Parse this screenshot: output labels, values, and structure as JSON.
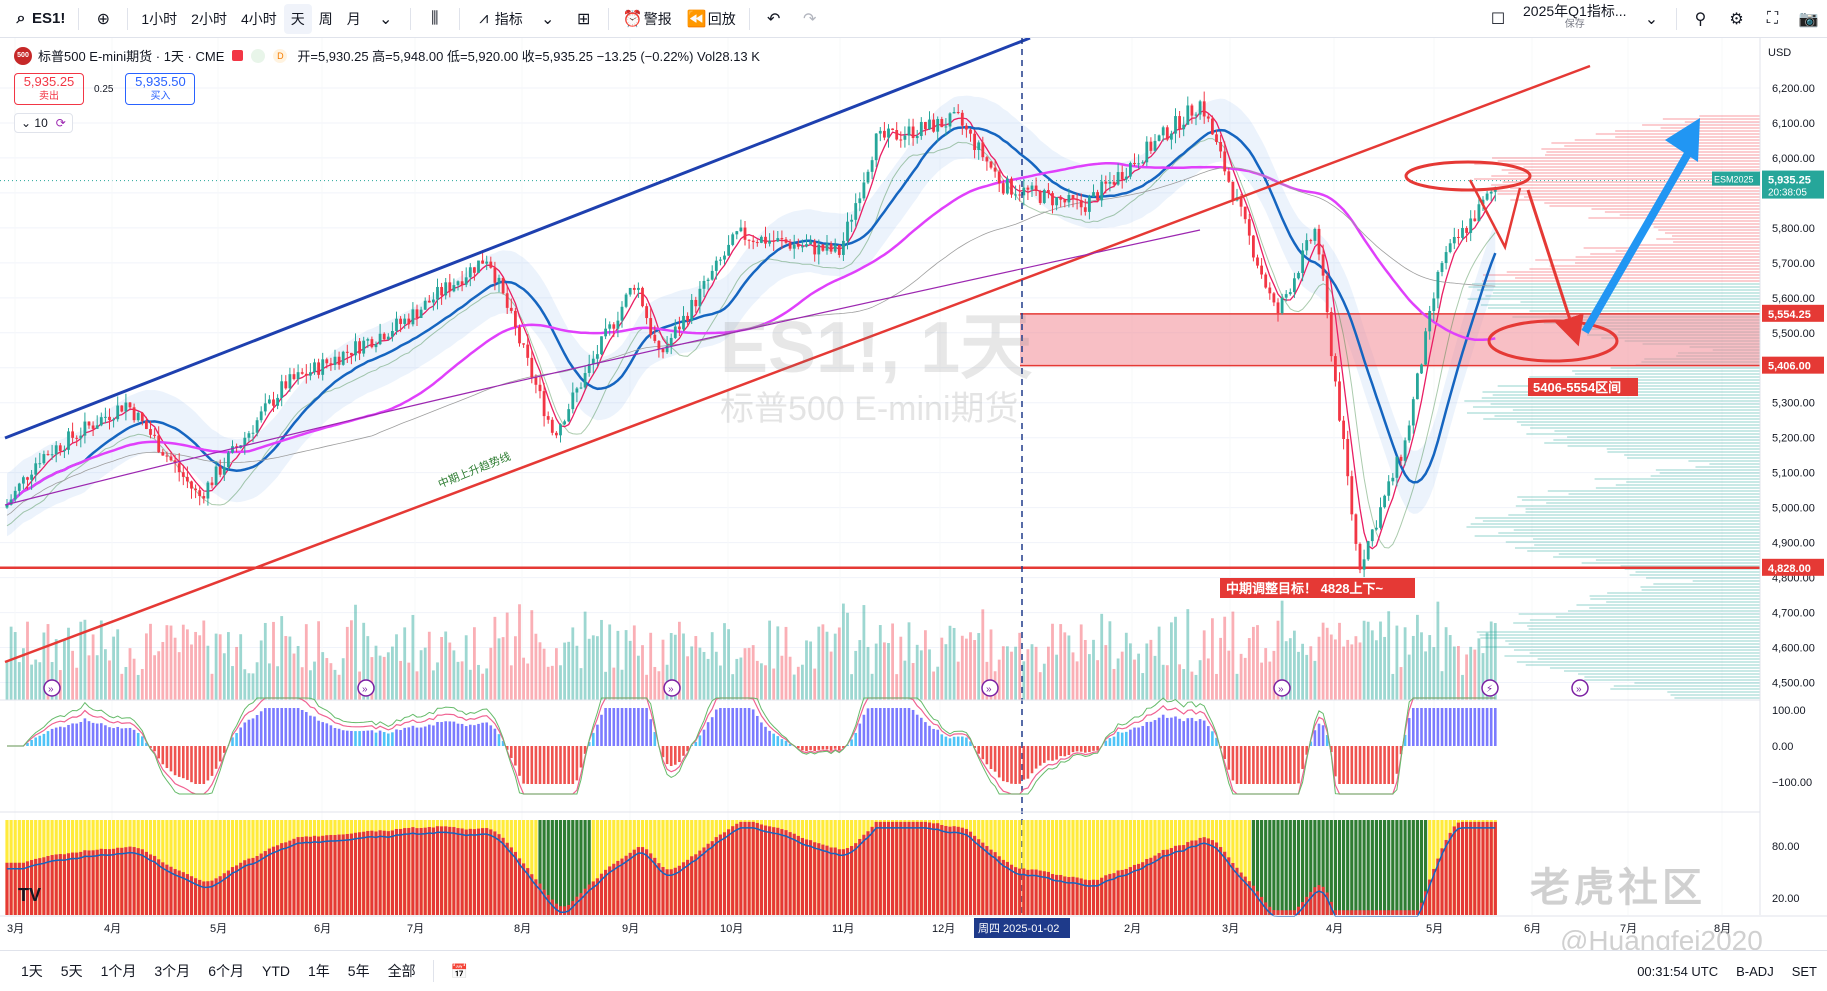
{
  "toolbar": {
    "symbol": "ES1!",
    "intervals": [
      "1小时",
      "2小时",
      "4小时",
      "天",
      "周",
      "月"
    ],
    "active_interval": "天",
    "indicators_label": "指标",
    "alert_label": "警报",
    "replay_label": "回放",
    "layout_title": "2025年Q1指标...",
    "layout_sub": "保存"
  },
  "legend": {
    "name": "标普500 E-mini期货 · 1天 · CME",
    "logo_text": "500",
    "d_label": "D",
    "ohlc": "开=5,930.25 高=5,948.00 低=5,920.00 收=5,935.25 −13.25 (−0.22%) Vol28.13 K",
    "sell_price": "5,935.25",
    "sell_label": "卖出",
    "spread": "0.25",
    "buy_price": "5,935.50",
    "buy_label": "买入",
    "indicator_count": "10"
  },
  "watermark_main": "ES1!, 1天",
  "watermark_sub": "标普500 E-mini期货",
  "currency": "USD",
  "annotations": {
    "trend_label": "中期上升趋势线",
    "zone_label": "5406-5554区间",
    "target_label": "中期调整目标！ 4828上下~"
  },
  "price_axis": {
    "ticks": [
      "6,200.00",
      "6,100.00",
      "6,000.00",
      "5,900.00",
      "5,800.00",
      "5,700.00",
      "5,600.00",
      "5,500.00",
      "5,400.00",
      "5,300.00",
      "5,200.00",
      "5,100.00",
      "5,000.00",
      "4,900.00",
      "4,800.00",
      "4,700.00",
      "4,600.00",
      "4,500.00"
    ],
    "last_label": "ESM2025",
    "last_price": "5,935.25",
    "countdown": "20:38:05",
    "zone_top": "5,554.25",
    "zone_bottom": "5,406.00",
    "target": "4,828.00"
  },
  "macd_axis": [
    "100.00",
    "0.00",
    "−100.00"
  ],
  "osc_axis": [
    "80.00",
    "20.00"
  ],
  "time_axis": [
    "3月",
    "4月",
    "5月",
    "6月",
    "7月",
    "8月",
    "9月",
    "10月",
    "11月",
    "12月",
    "周四 2025-01-02",
    "2月",
    "3月",
    "4月",
    "5月",
    "6月",
    "7月",
    "8月"
  ],
  "bottom": {
    "ranges": [
      "1天",
      "5天",
      "1个月",
      "3个月",
      "6个月",
      "YTD",
      "1年",
      "5年",
      "全部"
    ],
    "time": "00:31:54 UTC",
    "badj": "B-ADJ",
    "set": "SET"
  },
  "watermark_community": "老虎社区",
  "watermark_user": "@Huangfei2020",
  "colors": {
    "up": "#26a69a",
    "down": "#f23645",
    "trend_blue": "#1e40af",
    "trend_red": "#e53935",
    "zone": "#f28b96",
    "arrow_blue": "#2196f3"
  },
  "chart_data": {
    "type": "candlestick",
    "title": "ES1!, 1天",
    "price_range": [
      4450,
      6280
    ],
    "levels": {
      "zone_top": 5554.25,
      "zone_bottom": 5406.0,
      "target": 4828.0,
      "last": 5935.25
    },
    "close_path": [
      [
        "2024-02-20",
        5000
      ],
      [
        "2024-03-01",
        5140
      ],
      [
        "2024-03-28",
        5300
      ],
      [
        "2024-04-19",
        5030
      ],
      [
        "2024-05-15",
        5350
      ],
      [
        "2024-06-20",
        5530
      ],
      [
        "2024-07-16",
        5720
      ],
      [
        "2024-08-05",
        5210
      ],
      [
        "2024-08-30",
        5650
      ],
      [
        "2024-09-06",
        5430
      ],
      [
        "2024-09-30",
        5780
      ],
      [
        "2024-10-31",
        5730
      ],
      [
        "2024-11-11",
        6050
      ],
      [
        "2024-12-06",
        6110
      ],
      [
        "2024-12-20",
        5920
      ],
      [
        "2025-01-13",
        5860
      ],
      [
        "2025-02-18",
        6160
      ],
      [
        "2025-03-13",
        5550
      ],
      [
        "2025-03-25",
        5800
      ],
      [
        "2025-04-07",
        4830
      ],
      [
        "2025-04-21",
        5180
      ],
      [
        "2025-05-02",
        5700
      ],
      [
        "2025-05-20",
        5935.25
      ]
    ]
  }
}
